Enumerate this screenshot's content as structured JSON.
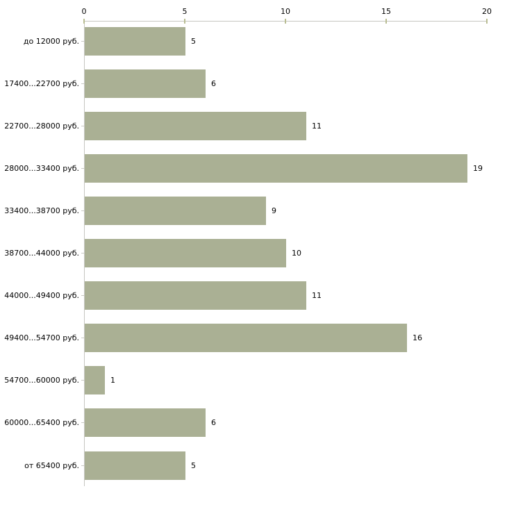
{
  "chart_data": {
    "type": "bar",
    "orientation": "horizontal",
    "title": "",
    "xlabel": "",
    "ylabel": "",
    "categories": [
      "до 12000 руб.",
      "17400...22700 руб.",
      "22700...28000 руб.",
      "28000...33400 руб.",
      "33400...38700 руб.",
      "38700...44000 руб.",
      "44000...49400 руб.",
      "49400...54700 руб.",
      "54700...60000 руб.",
      "60000...65400 руб.",
      "от 65400 руб."
    ],
    "values": [
      5,
      6,
      11,
      19,
      9,
      10,
      11,
      16,
      1,
      6,
      5
    ],
    "value_labels": [
      "5",
      "6",
      "11",
      "19",
      "9",
      "10",
      "11",
      "16",
      "1",
      "6",
      "5"
    ],
    "xlim": [
      0,
      20
    ],
    "x_ticks": [
      "0",
      "5",
      "10",
      "15",
      "20"
    ],
    "x_tick_values": [
      0,
      5,
      10,
      15,
      20
    ],
    "axis_position": "top",
    "grid": false,
    "legend": null,
    "colors": {
      "bar_fill": "#aab094",
      "axis_line": "#c6c6c0",
      "tick_mark": "#b9bd92",
      "text": "#000000",
      "background": "#ffffff"
    }
  }
}
